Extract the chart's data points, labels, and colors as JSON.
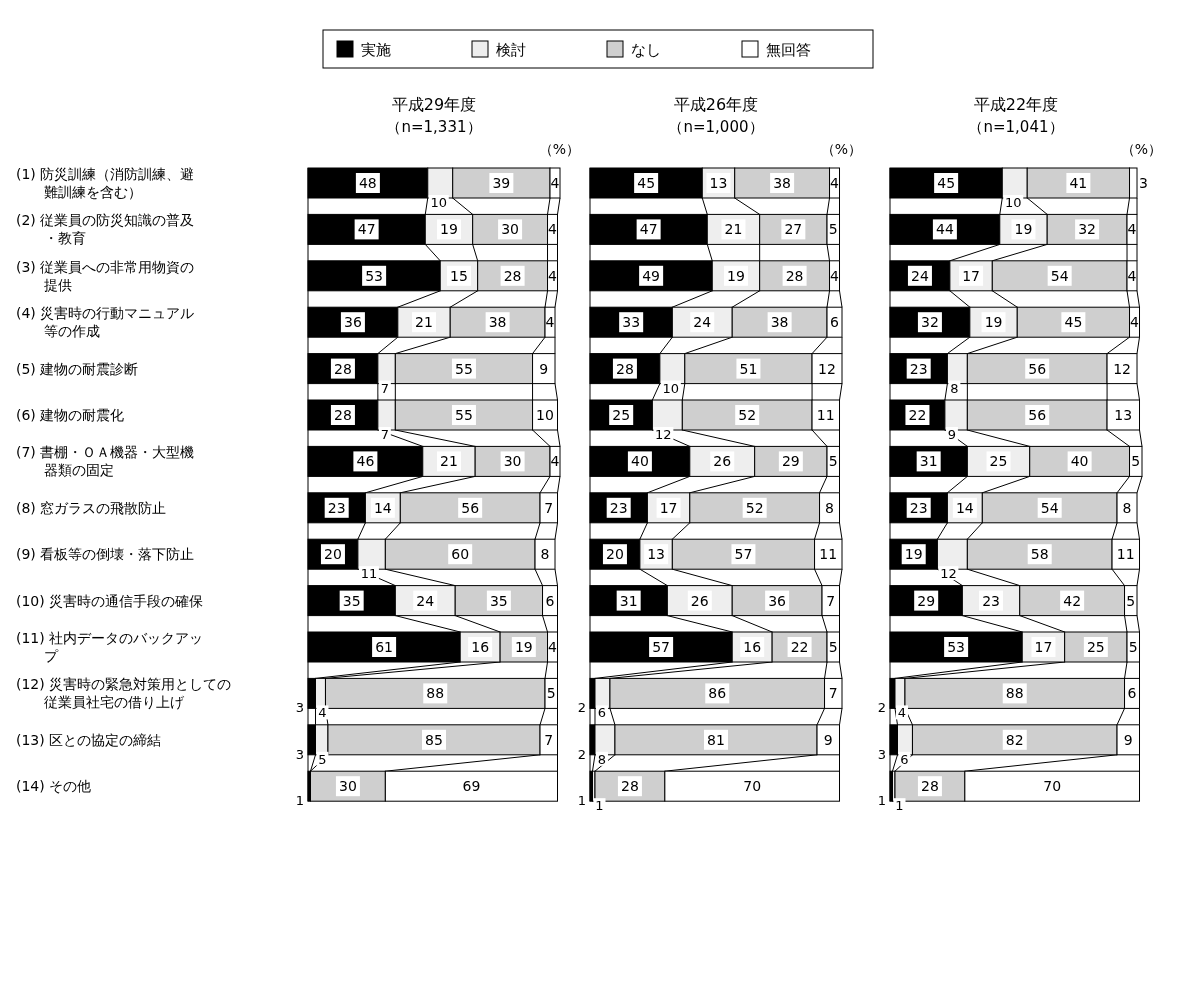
{
  "chart_data": [
    {
      "type": "bar",
      "orientation": "horizontal",
      "stacked": true,
      "title": "平成29年度",
      "subtitle": "（n=1,331）",
      "annotations": [
        "（%）"
      ],
      "legend": "top",
      "tick_labels": "y",
      "data_labels": true,
      "categories": [
        "(1) 防災訓練（消防訓練、避難訓練を含む）",
        "(2) 従業員の防災知識の普及・教育",
        "(3) 従業員への非常用物資の提供",
        "(4) 災害時の行動マニュアル等の作成",
        "(5) 建物の耐震診断",
        "(6) 建物の耐震化",
        "(7) 書棚・ＯＡ機器・大型機器類の固定",
        "(8) 窓ガラスの飛散防止",
        "(9) 看板等の倒壊・落下防止",
        "(10) 災害時の通信手段の確保",
        "(11) 社内データのバックアップ",
        "(12) 災害時の緊急対策用としての従業員社宅の借り上げ",
        "(13) 区との協定の締結",
        "(14) その他"
      ],
      "series": [
        {
          "name": "実施",
          "color": "#000000",
          "values": [
            48,
            47,
            53,
            36,
            28,
            28,
            46,
            23,
            20,
            35,
            61,
            3,
            3,
            1
          ]
        },
        {
          "name": "検討",
          "color": "#eeeeee",
          "values": [
            10,
            19,
            15,
            21,
            7,
            7,
            21,
            14,
            11,
            24,
            16,
            4,
            5,
            null
          ]
        },
        {
          "name": "なし",
          "color": "#cfcfcf",
          "values": [
            39,
            30,
            28,
            38,
            55,
            55,
            30,
            56,
            60,
            35,
            19,
            88,
            85,
            30
          ]
        },
        {
          "name": "無回答",
          "color": "#ffffff",
          "values": [
            4,
            4,
            4,
            4,
            9,
            10,
            4,
            7,
            8,
            6,
            4,
            5,
            7,
            69
          ]
        }
      ]
    },
    {
      "type": "bar",
      "orientation": "horizontal",
      "stacked": true,
      "title": "平成26年度",
      "subtitle": "（n=1,000）",
      "annotations": [
        "（%）"
      ],
      "tick_labels": false,
      "data_labels": true,
      "categories": [
        "(1) 防災訓練（消防訓練、避難訓練を含む）",
        "(2) 従業員の防災知識の普及・教育",
        "(3) 従業員への非常用物資の提供",
        "(4) 災害時の行動マニュアル等の作成",
        "(5) 建物の耐震診断",
        "(6) 建物の耐震化",
        "(7) 書棚・ＯＡ機器・大型機器類の固定",
        "(8) 窓ガラスの飛散防止",
        "(9) 看板等の倒壊・落下防止",
        "(10) 災害時の通信手段の確保",
        "(11) 社内データのバックアップ",
        "(12) 災害時の緊急対策用としての従業員社宅の借り上げ",
        "(13) 区との協定の締結",
        "(14) その他"
      ],
      "series": [
        {
          "name": "実施",
          "color": "#000000",
          "values": [
            45,
            47,
            49,
            33,
            28,
            25,
            40,
            23,
            20,
            31,
            57,
            2,
            2,
            1
          ]
        },
        {
          "name": "検討",
          "color": "#eeeeee",
          "values": [
            13,
            21,
            19,
            24,
            10,
            12,
            26,
            17,
            13,
            26,
            16,
            6,
            8,
            1
          ]
        },
        {
          "name": "なし",
          "color": "#cfcfcf",
          "values": [
            38,
            27,
            28,
            38,
            51,
            52,
            29,
            52,
            57,
            36,
            22,
            86,
            81,
            28
          ]
        },
        {
          "name": "無回答",
          "color": "#ffffff",
          "values": [
            4,
            5,
            4,
            6,
            12,
            11,
            5,
            8,
            11,
            7,
            5,
            7,
            9,
            70
          ]
        }
      ]
    },
    {
      "type": "bar",
      "orientation": "horizontal",
      "stacked": true,
      "title": "平成22年度",
      "subtitle": "（n=1,041）",
      "annotations": [
        "（%）"
      ],
      "tick_labels": false,
      "data_labels": true,
      "categories": [
        "(1) 防災訓練（消防訓練、避難訓練を含む）",
        "(2) 従業員の防災知識の普及・教育",
        "(3) 従業員への非常用物資の提供",
        "(4) 災害時の行動マニュアル等の作成",
        "(5) 建物の耐震診断",
        "(6) 建物の耐震化",
        "(7) 書棚・ＯＡ機器・大型機器類の固定",
        "(8) 窓ガラスの飛散防止",
        "(9) 看板等の倒壊・落下防止",
        "(10) 災害時の通信手段の確保",
        "(11) 社内データのバックアップ",
        "(12) 災害時の緊急対策用としての従業員社宅の借り上げ",
        "(13) 区との協定の締結",
        "(14) その他"
      ],
      "series": [
        {
          "name": "実施",
          "color": "#000000",
          "values": [
            45,
            44,
            24,
            32,
            23,
            22,
            31,
            23,
            19,
            29,
            53,
            2,
            3,
            1
          ]
        },
        {
          "name": "検討",
          "color": "#eeeeee",
          "values": [
            10,
            19,
            17,
            19,
            8,
            9,
            25,
            14,
            12,
            23,
            17,
            4,
            6,
            1
          ]
        },
        {
          "name": "なし",
          "color": "#cfcfcf",
          "values": [
            41,
            32,
            54,
            45,
            56,
            56,
            40,
            54,
            58,
            42,
            25,
            88,
            82,
            28
          ]
        },
        {
          "name": "無回答",
          "color": "#ffffff",
          "values": [
            3,
            4,
            4,
            4,
            12,
            13,
            5,
            8,
            11,
            5,
            5,
            6,
            9,
            70
          ]
        }
      ]
    }
  ]
}
